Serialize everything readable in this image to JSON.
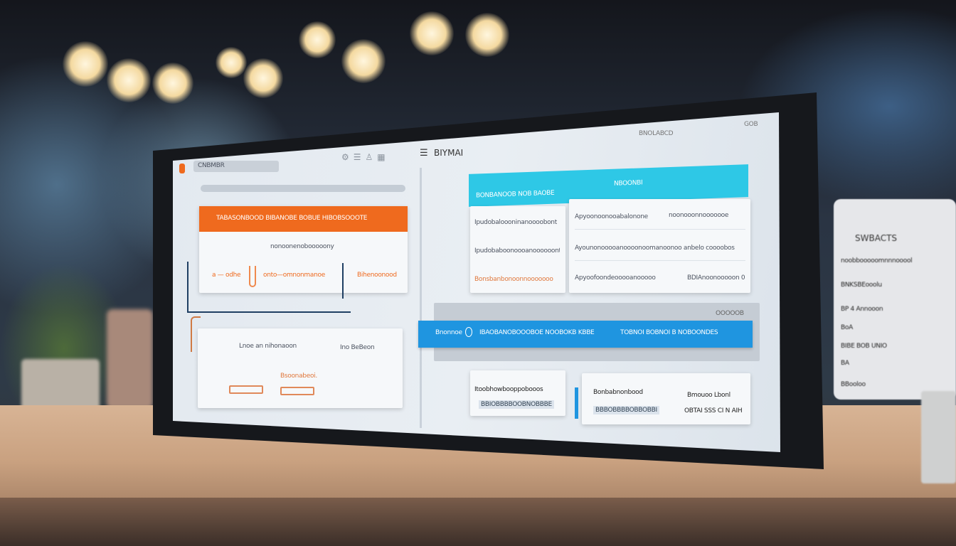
{
  "toolbar": {
    "app_title": "BIYMAI",
    "tab_label": "CNBMBR",
    "top_right_label": "BNOLABCD",
    "top_right_icons": "GOB"
  },
  "left_panel": {
    "orange_card_title": "TABASONBOOD BIBANOBE BOBUE HIBOBSOOOTE",
    "orange_card_subtitle": "nonoonenobooooony",
    "orange_card_labels": [
      "a — odhe",
      "onto—omnonmanoe",
      "Bihenoonood"
    ],
    "bottom_card_labels": [
      "Lnoe an nihonaoon",
      "Ino BeBeon"
    ],
    "bottom_card_link": "Bsoonabeoi.",
    "button_labels": [
      "",
      ""
    ]
  },
  "right_panel": {
    "cyan_header_left": "BONBANOOB NOB BAOBE",
    "cyan_header_right": "NBOONBI",
    "left_rows": [
      "Ipudobaloooninanoooobont",
      "Ipudobaboonoooanoooooont",
      "Bonsbanbonoonnooooooo"
    ],
    "right_rows": [
      "Apyoonoonooabalonone",
      "Ayounonooooanoooonoomanoonoo anbelo coooobos",
      "Apyoofoondeooooanooooo"
    ],
    "right_rows_trailing": [
      "noonooonnooooooe",
      "",
      "BDIAnoonooooon 0"
    ],
    "blue_bar_labels": [
      "Bnonnoe",
      "IBAOBANOBOOOBOE NOOBOKB KBBE",
      "TOBNOI BOBNOI B NOBOONDES"
    ],
    "gray_panel_label": "OOOOOB",
    "bottom_cards": [
      {
        "title": "Itoobhowbooppobooos",
        "field": "BBIOBBBBOOBNOBBBE"
      },
      {
        "title": "Bonbabnonbood",
        "field": "BBBOBBBBOBBOBBI",
        "right_title": "Bmouoo Lbonl",
        "right_value": "OBTAI SSS CI N AIH"
      }
    ]
  },
  "side_card": {
    "title": "SWBACTS",
    "rows": [
      "noobbooooomnnnooool",
      "BNKSBEooolu",
      "BP 4   Annooon",
      "BoA",
      "BIBE BOB   UNIO",
      "BA",
      "BBooloo"
    ]
  },
  "colors": {
    "orange": "#ef6a1e",
    "cyan": "#2ec8e6",
    "blue": "#1f95e0",
    "navy": "#1f3f63"
  }
}
